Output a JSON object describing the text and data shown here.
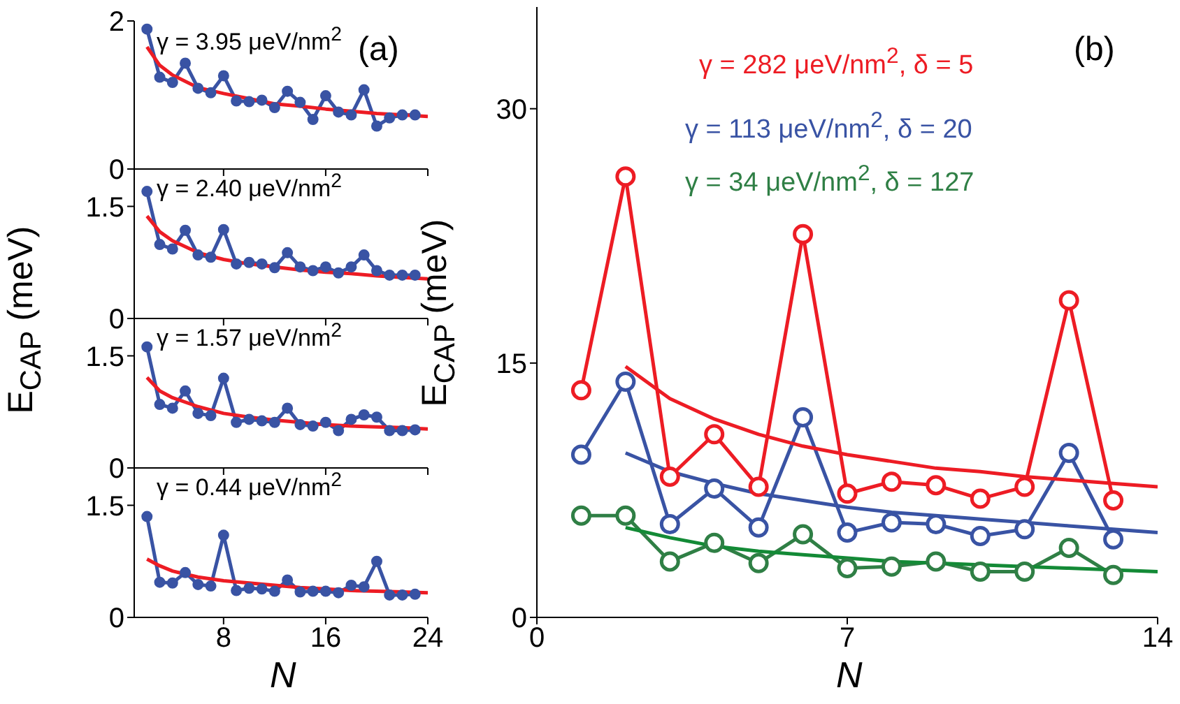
{
  "chart_data": [
    {
      "type": "line",
      "ylabel": "E$_{CAP}$ (meV)",
      "annotations": [
        "γ = 3.95 μeV/nm$^{2}$",
        "(a)"
      ],
      "xlim": [
        1,
        24
      ],
      "xticks": [
        8,
        16,
        24
      ],
      "ylim": [
        0,
        2
      ],
      "yticks": [
        0,
        2
      ],
      "tick_labels": "y",
      "series": [
        {
          "color": "#3953a4",
          "marker": "circle",
          "x": [
            2,
            3,
            4,
            5,
            6,
            7,
            8,
            9,
            10,
            11,
            12,
            13,
            14,
            15,
            16,
            17,
            18,
            19,
            20,
            21,
            22,
            23
          ],
          "values": [
            1.89,
            1.24,
            1.17,
            1.43,
            1.09,
            1.03,
            1.26,
            0.92,
            0.91,
            0.93,
            0.83,
            1.05,
            0.9,
            0.67,
            0.99,
            0.77,
            0.73,
            1.07,
            0.58,
            0.69,
            0.73,
            0.73
          ]
        },
        {
          "color": "#ed1c24",
          "marker": "none",
          "x": [
            2,
            3,
            4,
            6,
            8,
            10,
            12,
            14,
            16,
            18,
            20,
            22,
            24
          ],
          "values": [
            1.65,
            1.4,
            1.27,
            1.1,
            1.02,
            0.95,
            0.88,
            0.85,
            0.81,
            0.78,
            0.75,
            0.73,
            0.71
          ]
        }
      ]
    },
    {
      "type": "line",
      "annotations": [
        "γ = 2.40 μeV/nm$^{2}$"
      ],
      "xlim": [
        1,
        24
      ],
      "xticks": [
        8,
        16,
        24
      ],
      "ylim": [
        0,
        2
      ],
      "yticks": [
        0,
        1.5
      ],
      "tick_labels": "y",
      "series": [
        {
          "color": "#3953a4",
          "marker": "circle",
          "x": [
            2,
            3,
            4,
            5,
            6,
            7,
            8,
            9,
            10,
            11,
            12,
            13,
            14,
            15,
            16,
            17,
            18,
            19,
            20,
            21,
            22,
            23
          ],
          "values": [
            1.7,
            0.99,
            0.93,
            1.18,
            0.85,
            0.82,
            1.19,
            0.73,
            0.75,
            0.73,
            0.68,
            0.88,
            0.69,
            0.64,
            0.69,
            0.61,
            0.69,
            0.85,
            0.64,
            0.58,
            0.58,
            0.58
          ]
        },
        {
          "color": "#ed1c24",
          "marker": "none",
          "x": [
            2,
            3,
            4,
            6,
            8,
            10,
            12,
            14,
            16,
            18,
            20,
            22,
            24
          ],
          "values": [
            1.37,
            1.16,
            1.04,
            0.88,
            0.79,
            0.73,
            0.69,
            0.65,
            0.62,
            0.6,
            0.57,
            0.55,
            0.53
          ]
        }
      ]
    },
    {
      "type": "line",
      "annotations": [
        "γ = 1.57 μeV/nm$^{2}$"
      ],
      "xlim": [
        1,
        24
      ],
      "xticks": [
        8,
        16,
        24
      ],
      "ylim": [
        0,
        2
      ],
      "yticks": [
        0,
        1.5
      ],
      "tick_labels": "y",
      "series": [
        {
          "color": "#3953a4",
          "marker": "circle",
          "x": [
            2,
            3,
            4,
            5,
            6,
            7,
            8,
            9,
            10,
            11,
            12,
            13,
            14,
            15,
            16,
            17,
            18,
            19,
            20,
            21,
            22,
            23
          ],
          "values": [
            1.62,
            0.85,
            0.8,
            1.03,
            0.73,
            0.7,
            1.2,
            0.61,
            0.65,
            0.63,
            0.61,
            0.8,
            0.58,
            0.56,
            0.61,
            0.5,
            0.65,
            0.71,
            0.68,
            0.5,
            0.5,
            0.51
          ]
        },
        {
          "color": "#ed1c24",
          "marker": "none",
          "x": [
            2,
            3,
            4,
            6,
            8,
            10,
            12,
            14,
            16,
            18,
            20,
            22,
            24
          ],
          "values": [
            1.21,
            1.03,
            0.94,
            0.82,
            0.73,
            0.68,
            0.64,
            0.61,
            0.58,
            0.56,
            0.55,
            0.54,
            0.52
          ]
        }
      ]
    },
    {
      "type": "line",
      "xlabel": "N",
      "annotations": [
        "γ = 0.44 μeV/nm$^{2}$"
      ],
      "xlim": [
        1,
        24
      ],
      "xticks": [
        8,
        16,
        24
      ],
      "ylim": [
        0,
        2
      ],
      "yticks": [
        0,
        1.5
      ],
      "series": [
        {
          "color": "#3953a4",
          "marker": "circle",
          "x": [
            2,
            3,
            4,
            5,
            6,
            7,
            8,
            9,
            10,
            11,
            12,
            13,
            14,
            15,
            16,
            17,
            18,
            19,
            20,
            21,
            22,
            23
          ],
          "values": [
            1.35,
            0.47,
            0.46,
            0.6,
            0.44,
            0.42,
            1.1,
            0.36,
            0.39,
            0.38,
            0.35,
            0.5,
            0.34,
            0.35,
            0.35,
            0.33,
            0.43,
            0.41,
            0.75,
            0.3,
            0.3,
            0.31
          ]
        },
        {
          "color": "#ed1c24",
          "marker": "none",
          "x": [
            2,
            3,
            4,
            6,
            8,
            10,
            12,
            14,
            16,
            18,
            20,
            22,
            24
          ],
          "values": [
            0.78,
            0.69,
            0.62,
            0.54,
            0.49,
            0.46,
            0.43,
            0.4,
            0.38,
            0.36,
            0.35,
            0.34,
            0.33
          ]
        }
      ]
    },
    {
      "type": "line",
      "xlabel": "N",
      "ylabel": "E$_{CAP}$ (meV)",
      "annotations": [
        "(b)"
      ],
      "xlim": [
        0,
        14
      ],
      "xticks": [
        0,
        7,
        14
      ],
      "ylim": [
        0,
        36
      ],
      "yticks": [
        0,
        15,
        30
      ],
      "series": [
        {
          "name": "γ = 282 μeV/nm$^{2}$, δ = 5",
          "color": "#ed1c24",
          "marker": "circle",
          "x": [
            1,
            2,
            3,
            4,
            5,
            6,
            7,
            8,
            9,
            10,
            11,
            12,
            13
          ],
          "values": [
            13.4,
            26.0,
            8.3,
            10.8,
            7.7,
            22.6,
            7.3,
            8.0,
            7.8,
            7.0,
            7.7,
            18.7,
            6.9
          ]
        },
        {
          "name": "γ = 113 μeV/nm$^{2}$, δ = 20",
          "color": "#3953a4",
          "marker": "circle",
          "x": [
            1,
            2,
            3,
            4,
            5,
            6,
            7,
            8,
            9,
            10,
            11,
            12,
            13
          ],
          "values": [
            9.6,
            13.9,
            5.5,
            7.6,
            5.3,
            11.8,
            5.0,
            5.6,
            5.5,
            4.8,
            5.2,
            9.7,
            4.6
          ]
        },
        {
          "name": "γ = 34 μeV/nm$^{2}$, δ = 127",
          "color": "#2f7f45",
          "marker": "circle",
          "x": [
            1,
            2,
            3,
            4,
            5,
            6,
            7,
            8,
            9,
            10,
            11,
            12,
            13
          ],
          "values": [
            6.0,
            6.0,
            3.3,
            4.4,
            3.2,
            4.9,
            2.9,
            3.0,
            3.3,
            2.7,
            2.7,
            4.1,
            2.5
          ]
        },
        {
          "color": "#ed1c24",
          "marker": "none",
          "x": [
            2,
            3,
            4,
            5,
            6,
            7,
            8,
            9,
            10,
            11,
            12,
            13,
            14
          ],
          "values": [
            14.8,
            12.9,
            11.7,
            10.8,
            10.1,
            9.6,
            9.2,
            8.8,
            8.6,
            8.3,
            8.1,
            7.9,
            7.7
          ]
        },
        {
          "color": "#3953a4",
          "marker": "none",
          "x": [
            2,
            3,
            4,
            5,
            6,
            7,
            8,
            9,
            10,
            11,
            12,
            13,
            14
          ],
          "values": [
            9.7,
            8.6,
            7.9,
            7.3,
            6.9,
            6.5,
            6.2,
            6.0,
            5.8,
            5.6,
            5.4,
            5.2,
            5.0
          ]
        },
        {
          "color": "#138a36",
          "marker": "none",
          "x": [
            2,
            3,
            4,
            5,
            6,
            7,
            8,
            9,
            10,
            11,
            12,
            13,
            14
          ],
          "values": [
            5.3,
            4.7,
            4.2,
            3.9,
            3.7,
            3.5,
            3.3,
            3.2,
            3.1,
            3.0,
            2.9,
            2.8,
            2.7
          ]
        }
      ]
    }
  ]
}
